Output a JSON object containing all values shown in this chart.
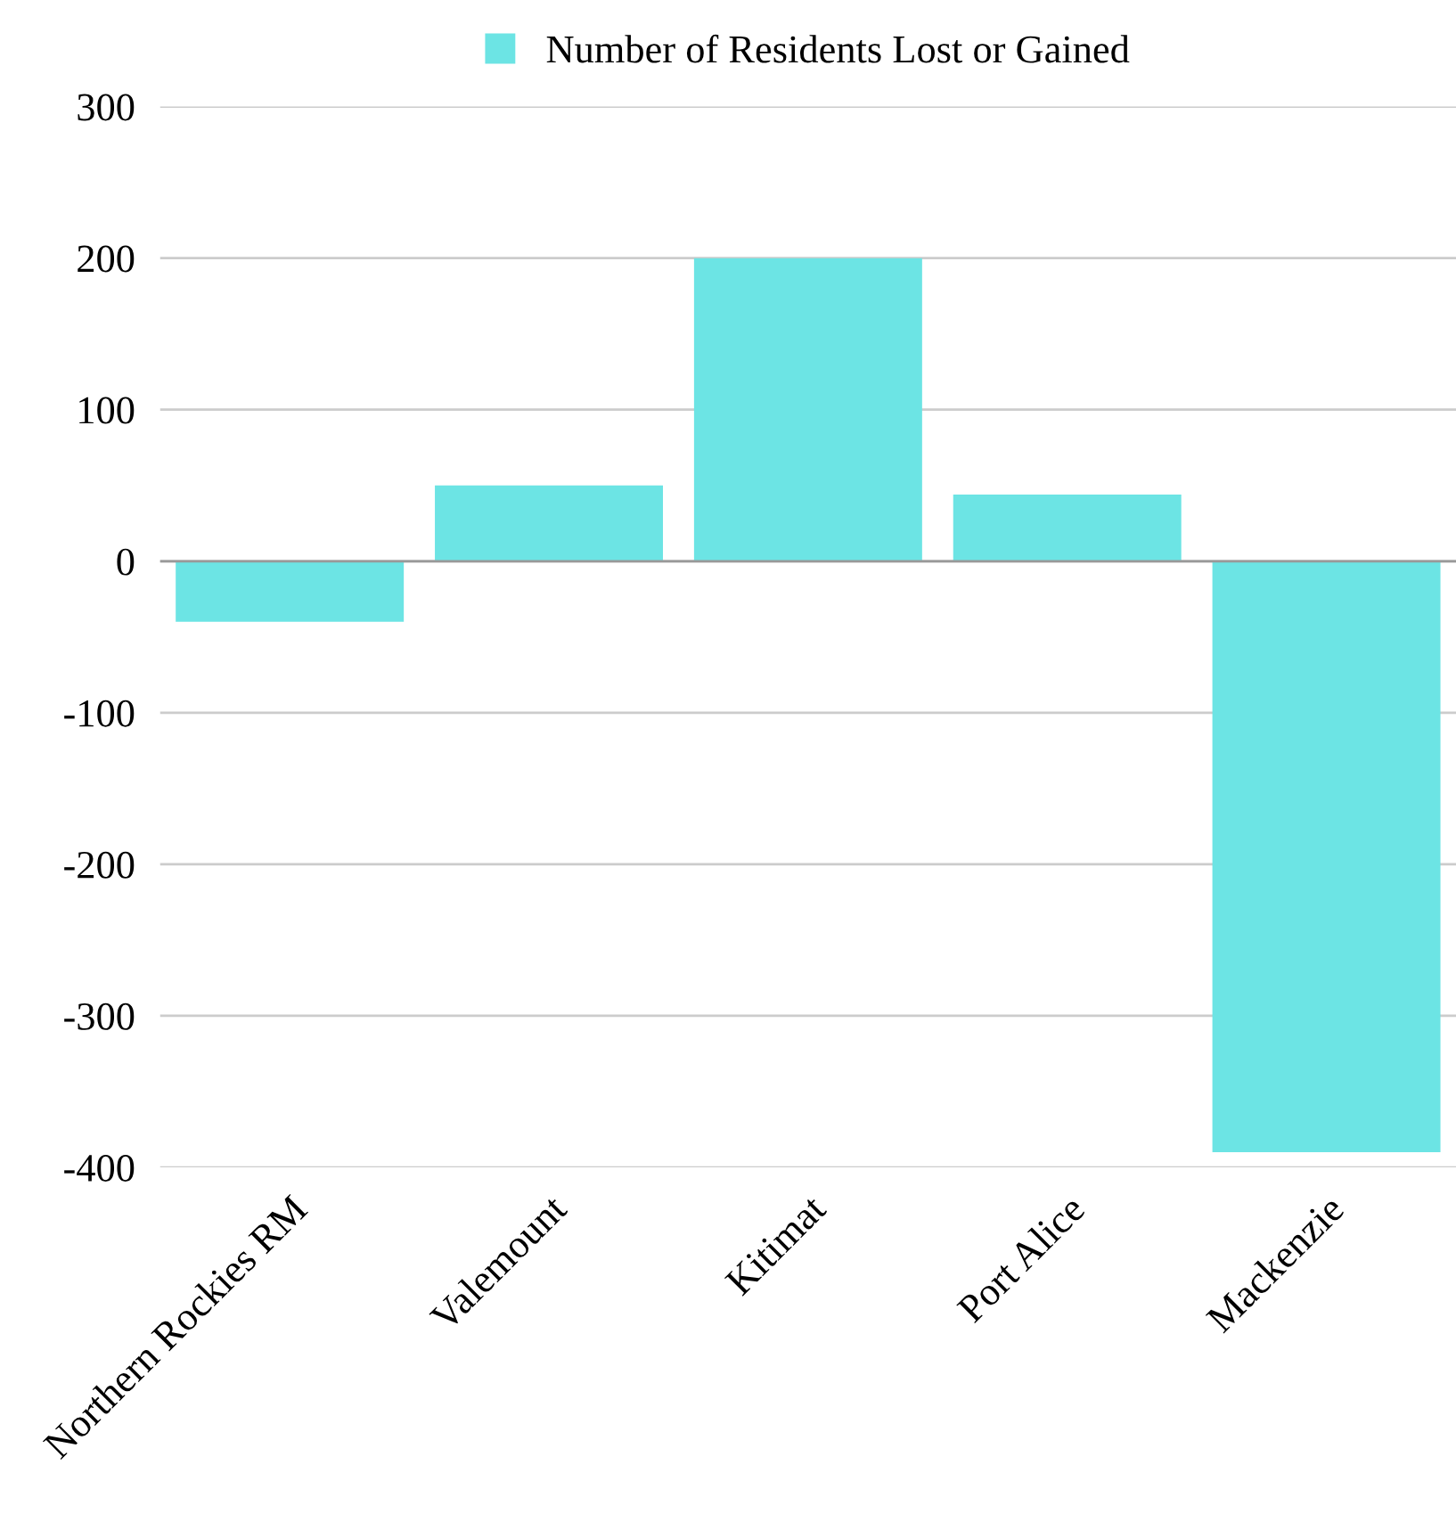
{
  "chart_data": {
    "type": "bar",
    "categories": [
      "Northern Rockies RM",
      "Valemount",
      "Kitimat",
      "Port Alice",
      "Mackenzie"
    ],
    "series": [
      {
        "name": "Number of Residents Lost or Gained",
        "color": "#6ce4e4",
        "values": [
          -40,
          50,
          200,
          44,
          -390
        ]
      }
    ],
    "ylim": [
      -400,
      300
    ],
    "yticks": [
      -400,
      -300,
      -200,
      -100,
      0,
      100,
      200,
      300
    ],
    "grid": "y",
    "legend": "top"
  }
}
